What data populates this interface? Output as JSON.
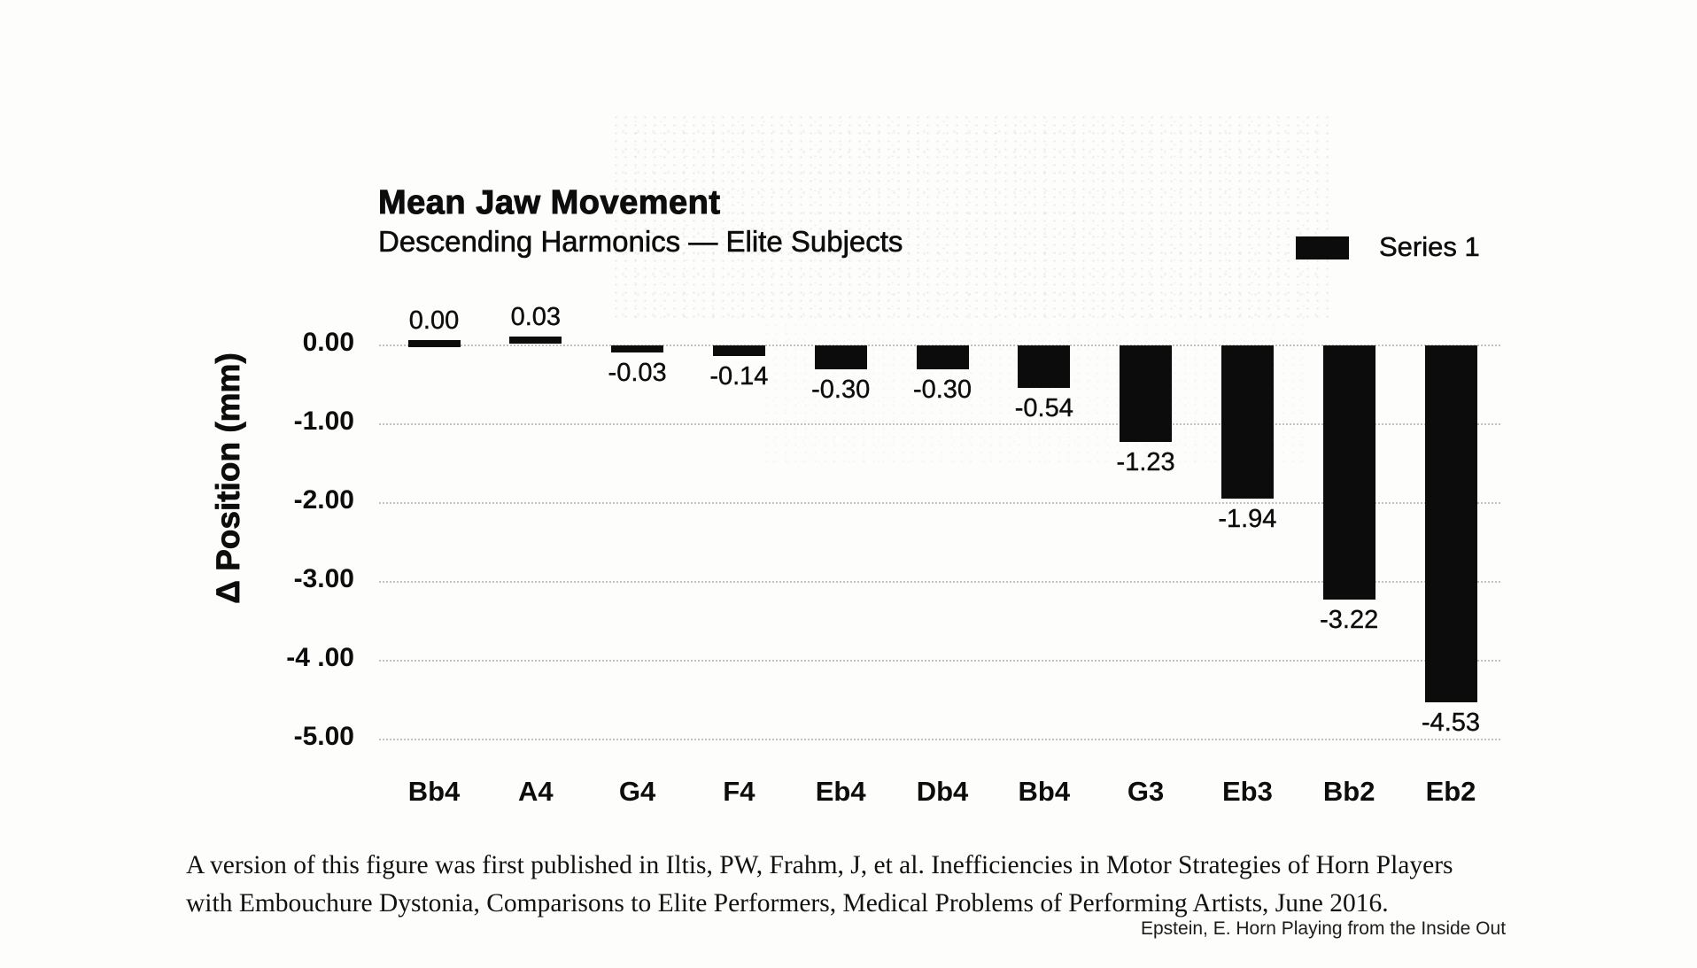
{
  "chart_data": {
    "type": "bar",
    "title": "Mean Jaw Movement",
    "subtitle": "Descending Harmonics — Elite Subjects",
    "legend": [
      "Series 1"
    ],
    "legend_position": "top-right",
    "ylabel": "Δ Position (mm)",
    "xlabel": "",
    "categories": [
      "Bb4",
      "A4",
      "G4",
      "F4",
      "Eb4",
      "Db4",
      "Bb4",
      "G3",
      "Eb3",
      "Bb2",
      "Eb2"
    ],
    "series": [
      {
        "name": "Series 1",
        "values": [
          0.0,
          0.03,
          -0.03,
          -0.14,
          -0.3,
          -0.3,
          -0.54,
          -1.23,
          -1.94,
          -3.22,
          -4.53
        ]
      }
    ],
    "data_labels": [
      "0.00",
      "0.03",
      "-0.03",
      "-0.14",
      "-0.30",
      "-0.30",
      "-0.54",
      "-1.23",
      "-1.94",
      "-3.22",
      "-4.53"
    ],
    "y_tick_labels": [
      "0.00",
      "-1.00",
      "-2.00",
      "-3.00",
      "-4 .00",
      "-5.00"
    ],
    "y_tick_values": [
      0,
      -1,
      -2,
      -3,
      -4,
      -5
    ],
    "ylim": [
      -5.0,
      0.0
    ],
    "grid": "horizontal-dotted",
    "bar_color": "#0c0c0c",
    "grid_color": "#919191",
    "background_color": "#fdfdfc"
  },
  "caption": {
    "line1": "A version of this figure was first published in Iltis, PW, Frahm, J, et al. Inefficiencies in Motor Strategies of Horn Players",
    "line2": "with Embouchure Dystonia, Comparisons to Elite Performers, Medical Problems of Performing Artists, June 2016."
  },
  "footer": {
    "credit": "Epstein, E. Horn Playing from the Inside Out"
  }
}
